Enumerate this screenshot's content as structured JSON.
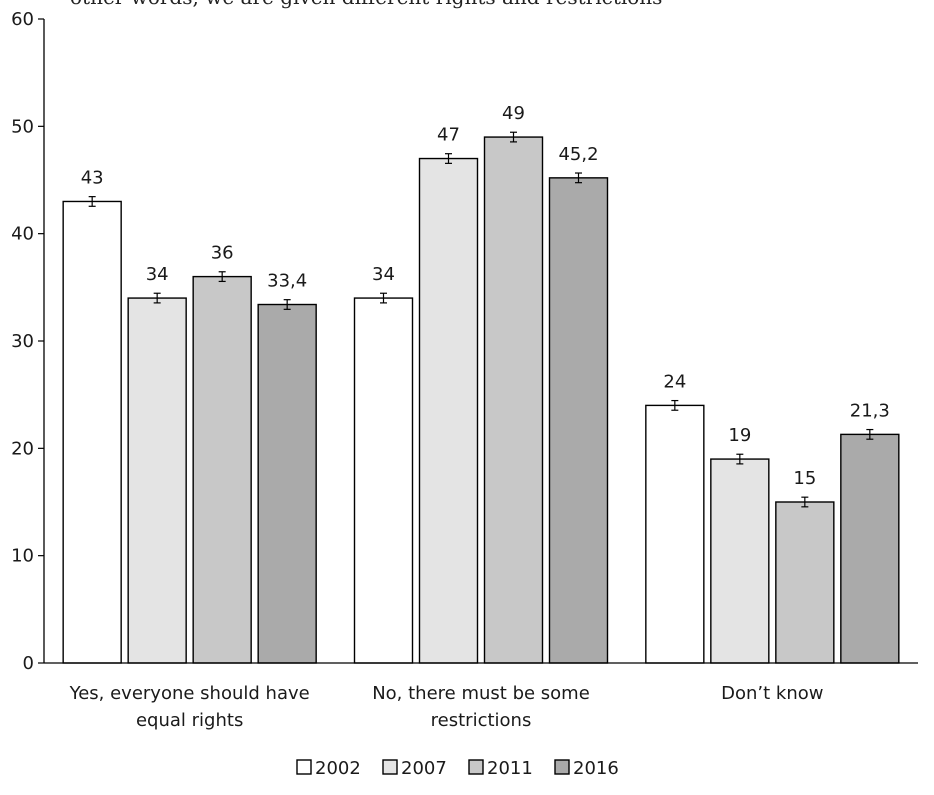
{
  "cut_off_text": "other words, we are given different rights and restrictions",
  "chart_data": {
    "type": "bar",
    "categories": [
      [
        "Yes, everyone should have",
        "equal rights"
      ],
      [
        "No, there must be some",
        "restrictions"
      ],
      [
        "Don’t know"
      ]
    ],
    "series": [
      {
        "name": "2002",
        "color": "#ffffff",
        "values": [
          43,
          34,
          24
        ],
        "labels": [
          "43",
          "34",
          "24"
        ]
      },
      {
        "name": "2007",
        "color": "#e4e4e4",
        "values": [
          34,
          47,
          19
        ],
        "labels": [
          "34",
          "47",
          "19"
        ]
      },
      {
        "name": "2011",
        "color": "#c8c8c8",
        "values": [
          36,
          49,
          15
        ],
        "labels": [
          "36",
          "49",
          "15"
        ]
      },
      {
        "name": "2016",
        "color": "#aaaaaa",
        "values": [
          33.4,
          45.2,
          21.3
        ],
        "labels": [
          "33,4",
          "45,2",
          "21,3"
        ]
      }
    ],
    "y_ticks": [
      "0",
      "10",
      "20",
      "30",
      "40",
      "50",
      "60"
    ],
    "ylim": [
      0,
      60
    ],
    "error_bars": true,
    "grid": false,
    "legend_position": "bottom-center"
  }
}
